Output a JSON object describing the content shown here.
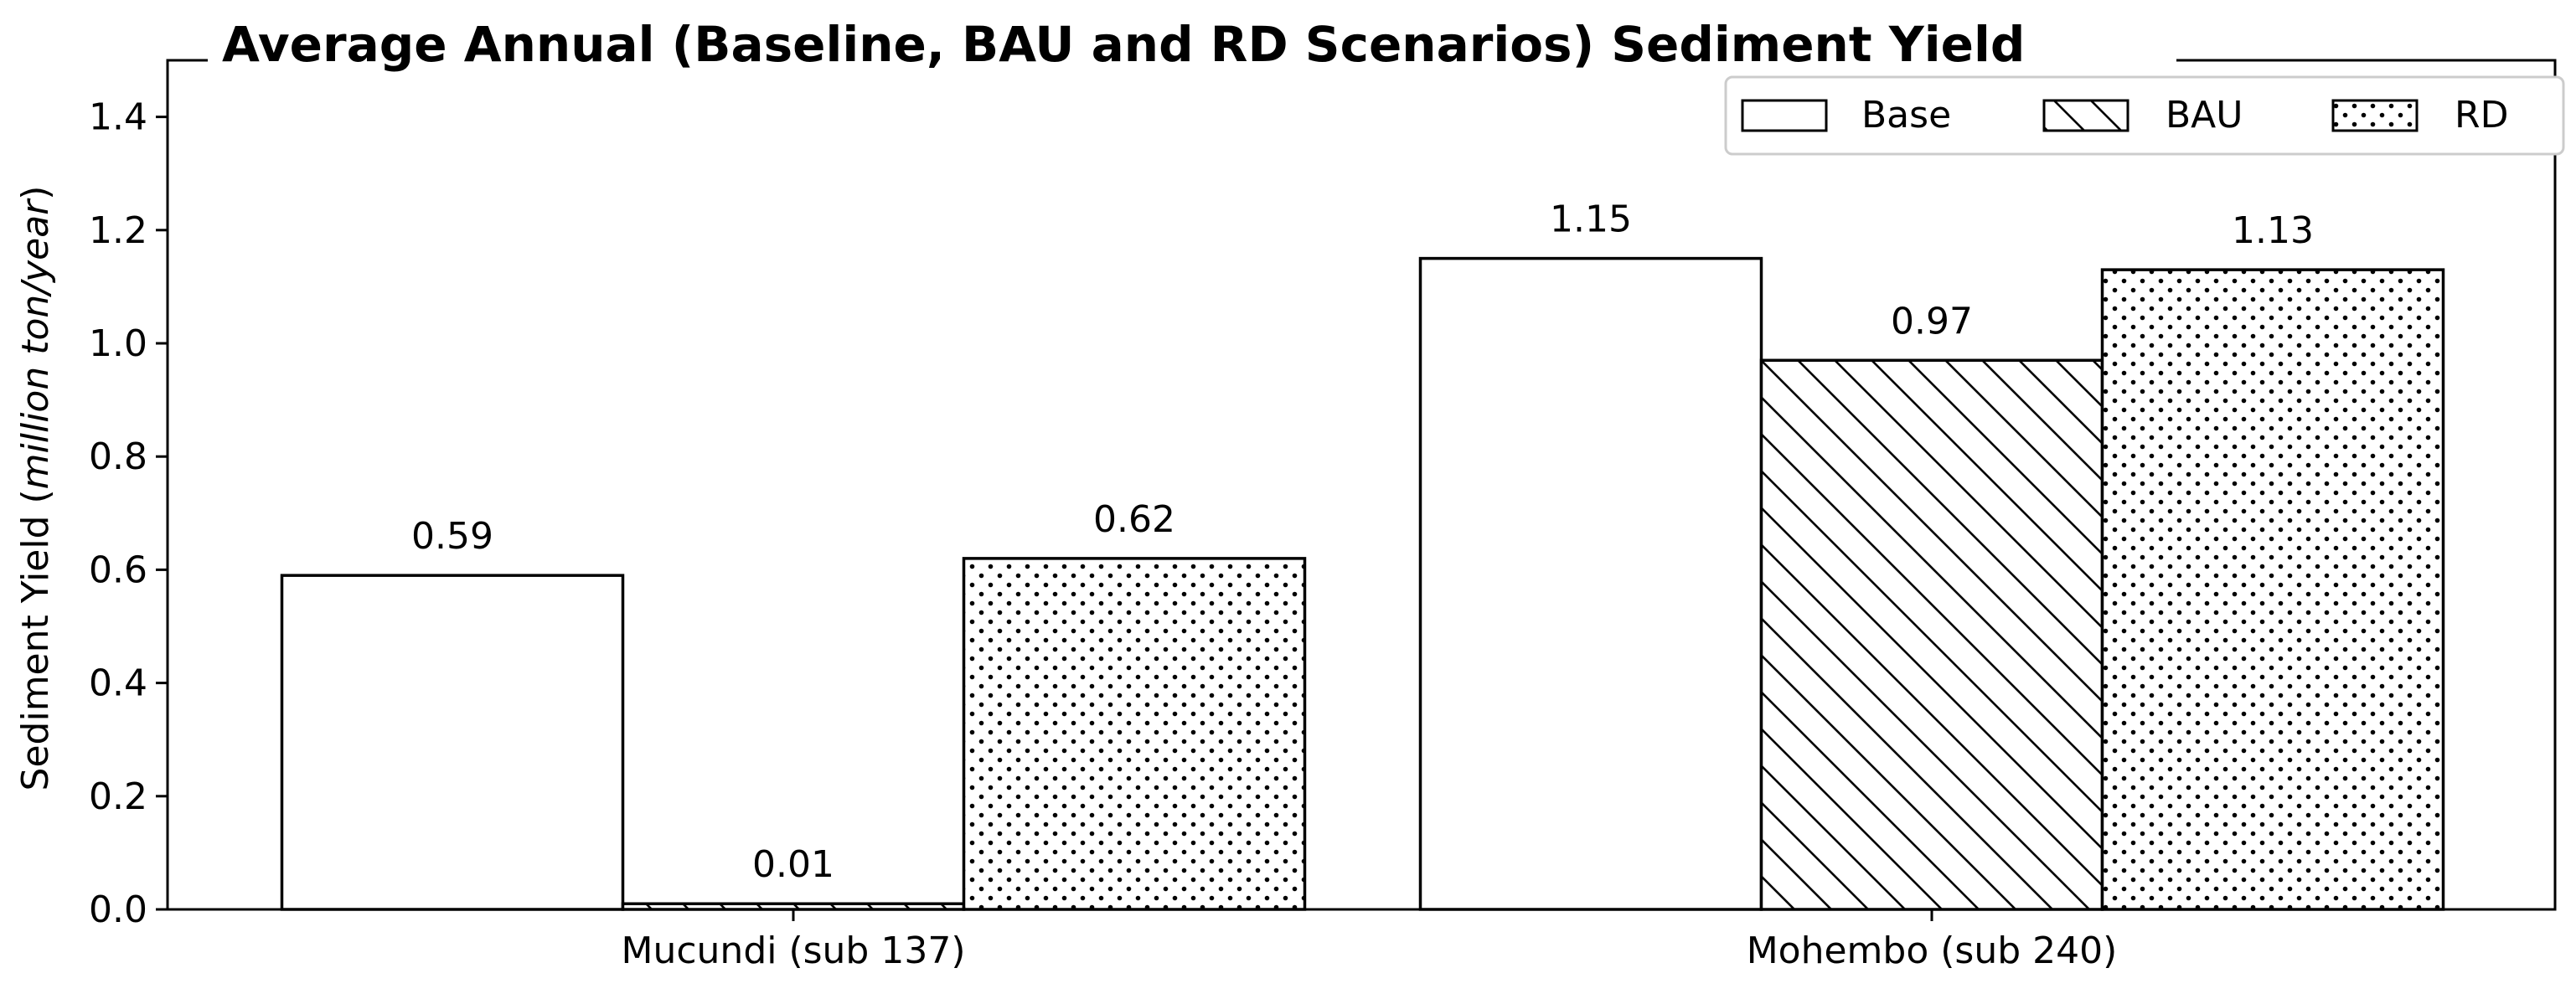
{
  "chart_data": {
    "type": "bar",
    "title": "Average Annual (Baseline, BAU and RD Scenarios) Sediment Yield",
    "xlabel": "",
    "ylabel": "Sediment Yield (",
    "ylabel_italic": "million ton/year",
    "ylabel_close": ")",
    "categories": [
      "Mucundi (sub 137)",
      "Mohembo (sub 240)"
    ],
    "series": [
      {
        "name": "Base",
        "pattern": "none",
        "values": [
          0.59,
          1.15
        ],
        "labels": [
          "0.59",
          "1.15"
        ]
      },
      {
        "name": "BAU",
        "pattern": "diagonal-hatch",
        "values": [
          0.01,
          0.97
        ],
        "labels": [
          "0.01",
          "0.97"
        ]
      },
      {
        "name": "RD",
        "pattern": "dots",
        "values": [
          0.62,
          1.13
        ],
        "labels": [
          "0.62",
          "1.13"
        ]
      }
    ],
    "ylim": [
      0,
      1.5
    ],
    "yticks": [
      "0.0",
      "0.2",
      "0.4",
      "0.6",
      "0.8",
      "1.0",
      "1.2",
      "1.4"
    ],
    "grid": false,
    "legend_position": "top-right",
    "colors": {
      "bar_fill": "#ffffff",
      "edge": "#000000",
      "background": "#ffffff"
    }
  }
}
